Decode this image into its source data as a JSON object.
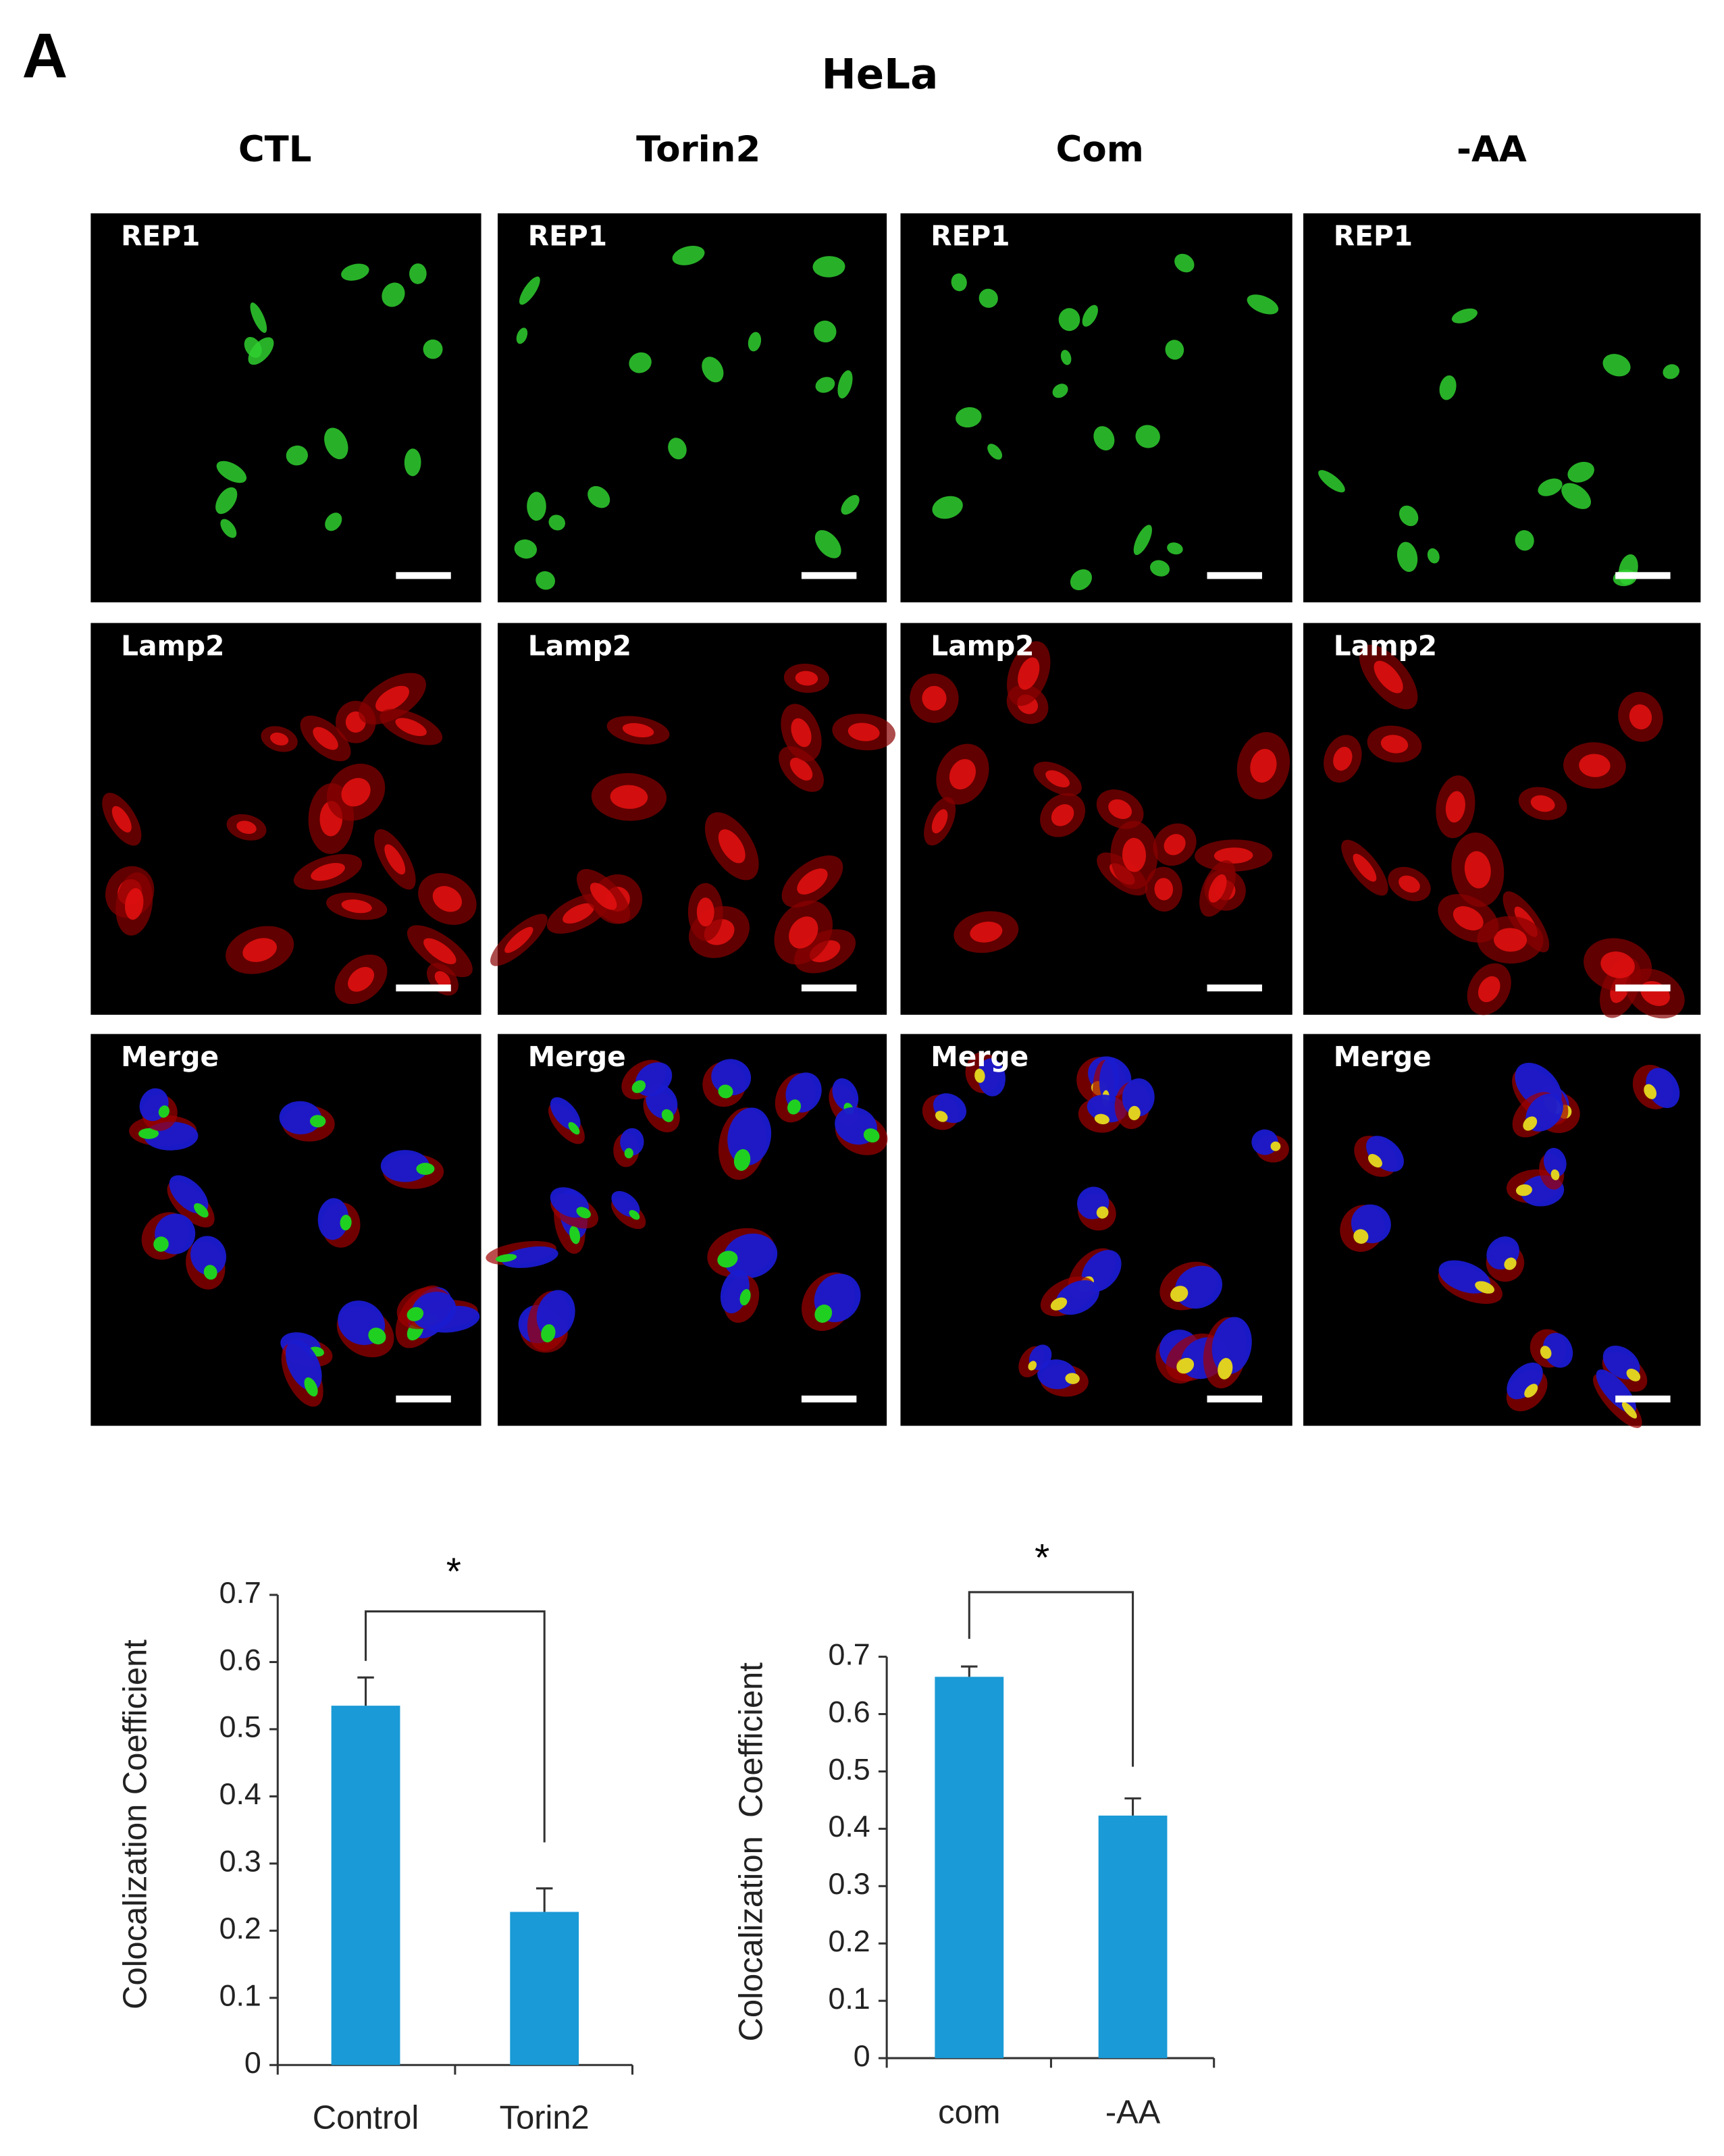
{
  "panel_label": "A",
  "title": "HeLa",
  "columns": [
    "CTL",
    "Torin2",
    "Com",
    "-AA"
  ],
  "rows": [
    [
      "REP1",
      "REP1",
      "REP1",
      "REP1"
    ],
    [
      "Lamp2",
      "Lamp2",
      "Lamp2",
      "Lamp2"
    ],
    [
      "Merge",
      "Merge",
      "Merge",
      "Merge"
    ]
  ],
  "chart_data": [
    {
      "type": "bar",
      "ylabel": "Colocalization Coefficient",
      "categories": [
        "Control",
        "Torin2"
      ],
      "values": [
        0.535,
        0.228
      ],
      "errors": [
        0.042,
        0.035
      ],
      "color": "#1a9ad6",
      "ylim": [
        0,
        0.7
      ],
      "yticks": [
        0,
        0.1,
        0.2,
        0.3,
        0.4,
        0.5,
        0.6,
        0.7
      ],
      "annotation": "*"
    },
    {
      "type": "bar",
      "ylabel": "Colocalization  Coefficient",
      "categories": [
        "com",
        "-AA"
      ],
      "values": [
        0.665,
        0.423
      ],
      "errors": [
        0.018,
        0.03
      ],
      "color": "#1a9ad6",
      "ylim": [
        0,
        0.7
      ],
      "yticks": [
        0,
        0.1,
        0.2,
        0.3,
        0.4,
        0.5,
        0.6,
        0.7
      ],
      "annotation": "*"
    }
  ]
}
